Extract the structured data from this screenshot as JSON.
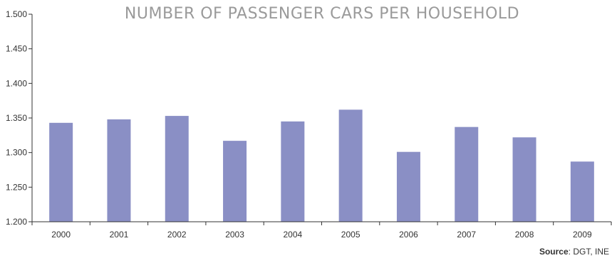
{
  "chart_data": {
    "type": "bar",
    "title": "NUMBER OF PASSENGER CARS PER HOUSEHOLD",
    "xlabel": "",
    "ylabel": "",
    "categories": [
      "2000",
      "2001",
      "2002",
      "2003",
      "2004",
      "2005",
      "2006",
      "2007",
      "2008",
      "2009"
    ],
    "values": [
      1.343,
      1.348,
      1.353,
      1.317,
      1.345,
      1.362,
      1.301,
      1.337,
      1.322,
      1.287
    ],
    "ylim": [
      1.2,
      1.5
    ],
    "yticks": [
      "1.200",
      "1.250",
      "1.300",
      "1.350",
      "1.400",
      "1.450",
      "1.500"
    ],
    "bar_color": "#8a8fc5",
    "grid": false,
    "source_label": "Source",
    "source_text": ": DGT, INE"
  }
}
